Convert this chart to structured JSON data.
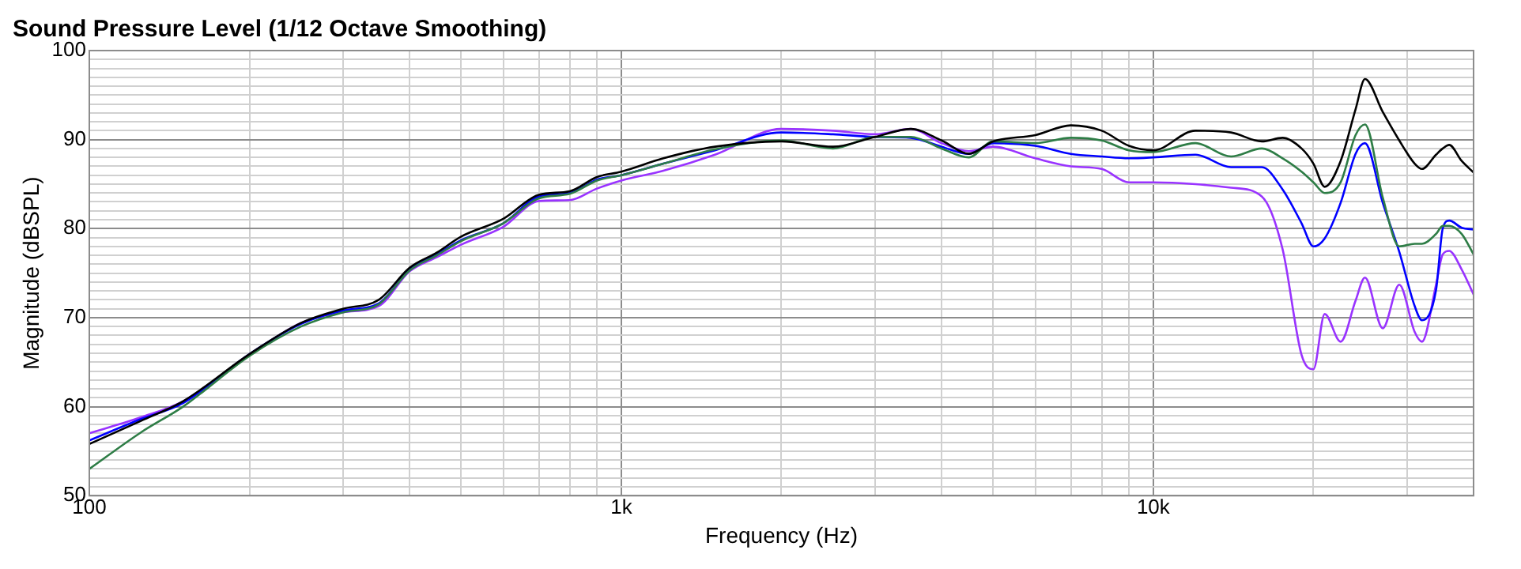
{
  "chart_data": {
    "type": "line",
    "title": "Sound Pressure Level (1/12 Octave Smoothing)",
    "xlabel": "Frequency (Hz)",
    "ylabel": "Magnitude (dBSPL)",
    "log": "x",
    "grid": true,
    "legend": false,
    "marker": "none",
    "line_style": "solid",
    "xlim": [
      100,
      40000
    ],
    "ylim": [
      50,
      100
    ],
    "xticks": [
      100,
      {
        "value": 200,
        "label": null
      },
      {
        "value": 300,
        "label": null
      },
      {
        "value": 400,
        "label": null
      },
      {
        "value": 500,
        "label": null
      },
      {
        "value": 600,
        "label": null
      },
      {
        "value": 700,
        "label": null
      },
      {
        "value": 800,
        "label": null
      },
      {
        "value": 900,
        "label": null
      },
      {
        "value": 1000,
        "label": "1k"
      },
      {
        "value": 2000,
        "label": null
      },
      {
        "value": 3000,
        "label": null
      },
      {
        "value": 4000,
        "label": null
      },
      {
        "value": 5000,
        "label": null
      },
      {
        "value": 6000,
        "label": null
      },
      {
        "value": 7000,
        "label": null
      },
      {
        "value": 8000,
        "label": null
      },
      {
        "value": 9000,
        "label": null
      },
      {
        "value": 10000,
        "label": "10k"
      },
      {
        "value": 20000,
        "label": null
      },
      {
        "value": 30000,
        "label": null
      }
    ],
    "yticks": [
      50,
      {
        "value": 51,
        "label": null
      },
      {
        "value": 52,
        "label": null
      },
      {
        "value": 53,
        "label": null
      },
      {
        "value": 54,
        "label": null
      },
      {
        "value": 55,
        "label": null
      },
      {
        "value": 56,
        "label": null
      },
      {
        "value": 57,
        "label": null
      },
      {
        "value": 58,
        "label": null
      },
      {
        "value": 59,
        "label": null
      },
      60,
      {
        "value": 61,
        "label": null
      },
      {
        "value": 62,
        "label": null
      },
      {
        "value": 63,
        "label": null
      },
      {
        "value": 64,
        "label": null
      },
      {
        "value": 65,
        "label": null
      },
      {
        "value": 66,
        "label": null
      },
      {
        "value": 67,
        "label": null
      },
      {
        "value": 68,
        "label": null
      },
      {
        "value": 69,
        "label": null
      },
      70,
      {
        "value": 71,
        "label": null
      },
      {
        "value": 72,
        "label": null
      },
      {
        "value": 73,
        "label": null
      },
      {
        "value": 74,
        "label": null
      },
      {
        "value": 75,
        "label": null
      },
      {
        "value": 76,
        "label": null
      },
      {
        "value": 77,
        "label": null
      },
      {
        "value": 78,
        "label": null
      },
      {
        "value": 79,
        "label": null
      },
      80,
      {
        "value": 81,
        "label": null
      },
      {
        "value": 82,
        "label": null
      },
      {
        "value": 83,
        "label": null
      },
      {
        "value": 84,
        "label": null
      },
      {
        "value": 85,
        "label": null
      },
      {
        "value": 86,
        "label": null
      },
      {
        "value": 87,
        "label": null
      },
      {
        "value": 88,
        "label": null
      },
      {
        "value": 89,
        "label": null
      },
      90,
      {
        "value": 91,
        "label": null
      },
      {
        "value": 92,
        "label": null
      },
      {
        "value": 93,
        "label": null
      },
      {
        "value": 94,
        "label": null
      },
      {
        "value": 95,
        "label": null
      },
      {
        "value": 96,
        "label": null
      },
      {
        "value": 97,
        "label": null
      },
      {
        "value": 98,
        "label": null
      },
      {
        "value": 99,
        "label": null
      },
      100
    ],
    "x": [
      100,
      125,
      150,
      200,
      250,
      300,
      350,
      400,
      450,
      500,
      600,
      700,
      800,
      900,
      1000,
      1200,
      1500,
      2000,
      2500,
      3000,
      3500,
      4000,
      4500,
      5000,
      6000,
      7000,
      8000,
      9000,
      10000,
      12000,
      14000,
      16000,
      17500,
      19000,
      20000,
      21000,
      22500,
      24000,
      25000,
      27000,
      29000,
      31000,
      32000,
      34000,
      35000,
      36000,
      38000,
      40000
    ],
    "series": [
      {
        "color": "#000000",
        "values": [
          55.8,
          58.4,
          60.6,
          65.9,
          69.4,
          71.0,
          72.0,
          75.6,
          77.3,
          79.1,
          81.1,
          83.8,
          84.2,
          85.8,
          86.4,
          87.9,
          89.2,
          89.8,
          89.2,
          90.3,
          91.2,
          89.9,
          88.4,
          89.8,
          90.5,
          91.6,
          91.0,
          89.3,
          88.8,
          91.0,
          90.8,
          89.8,
          90.2,
          89.0,
          87.3,
          84.7,
          87.6,
          93.4,
          96.8,
          93.1,
          89.9,
          87.3,
          86.7,
          88.3,
          89.0,
          89.4,
          87.6,
          86.3
        ]
      },
      {
        "color": "#2e7d46",
        "values": [
          53.0,
          57.1,
          60.0,
          65.7,
          69.0,
          70.6,
          71.5,
          75.3,
          77.0,
          78.6,
          80.6,
          83.4,
          83.9,
          85.4,
          86.0,
          87.3,
          88.9,
          89.9,
          89.0,
          90.3,
          90.3,
          89.0,
          88.0,
          89.8,
          89.6,
          90.2,
          89.9,
          88.8,
          88.6,
          89.6,
          88.1,
          89.0,
          87.9,
          86.4,
          85.2,
          84.0,
          85.2,
          90.5,
          91.7,
          83.5,
          78.0,
          78.3,
          78.3,
          79.4,
          80.3,
          80.3,
          79.4,
          77.1
        ]
      },
      {
        "color": "#0000ff",
        "values": [
          56.2,
          58.6,
          60.4,
          65.9,
          69.3,
          70.8,
          71.6,
          75.4,
          77.1,
          78.7,
          80.6,
          83.6,
          84.0,
          85.5,
          86.0,
          87.3,
          88.8,
          90.8,
          90.6,
          90.3,
          90.2,
          89.2,
          88.4,
          89.6,
          89.3,
          88.4,
          88.1,
          87.9,
          88.0,
          88.3,
          86.9,
          86.9,
          84.4,
          80.6,
          78.0,
          78.9,
          82.9,
          88.4,
          89.6,
          82.9,
          77.4,
          71.3,
          69.7,
          73.1,
          80.0,
          80.9,
          80.1,
          79.9
        ]
      },
      {
        "color": "#9933ff",
        "values": [
          57.0,
          58.8,
          60.6,
          65.8,
          69.4,
          70.6,
          71.3,
          75.2,
          76.8,
          78.2,
          80.2,
          83.1,
          83.2,
          84.5,
          85.4,
          86.5,
          88.3,
          91.2,
          91.0,
          90.6,
          91.2,
          89.6,
          88.7,
          89.2,
          87.9,
          87.0,
          86.7,
          85.2,
          85.2,
          85.0,
          84.6,
          83.6,
          77.7,
          65.8,
          64.2,
          70.4,
          67.3,
          71.9,
          74.5,
          68.8,
          73.7,
          68.4,
          67.3,
          73.7,
          77.1,
          77.5,
          75.4,
          72.6
        ]
      }
    ]
  }
}
